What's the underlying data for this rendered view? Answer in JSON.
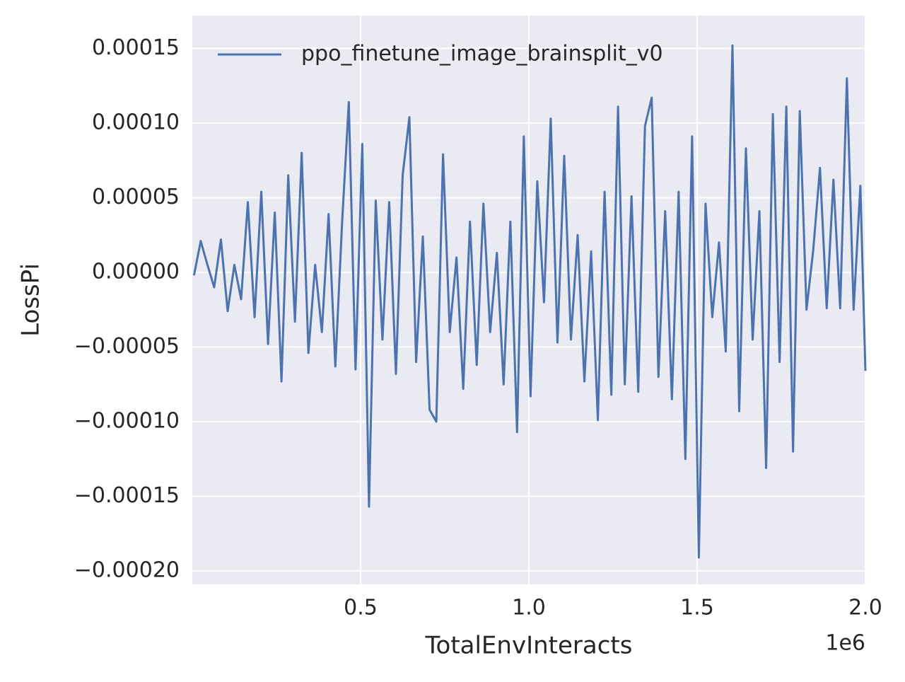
{
  "chart_data": {
    "type": "line",
    "xlabel": "TotalEnvInteracts",
    "ylabel": "LossPi",
    "x_offset_label": "1e6",
    "xlim": [
      0,
      2000000
    ],
    "ylim": [
      -0.000209,
      0.000172
    ],
    "xticks": [
      {
        "value": 500000,
        "label": "0.5"
      },
      {
        "value": 1000000,
        "label": "1.0"
      },
      {
        "value": 1500000,
        "label": "1.5"
      },
      {
        "value": 2000000,
        "label": "2.0"
      }
    ],
    "yticks": [
      {
        "value": -0.0002,
        "label": "−0.00020"
      },
      {
        "value": -0.00015,
        "label": "−0.00015"
      },
      {
        "value": -0.0001,
        "label": "−0.00010"
      },
      {
        "value": -5e-05,
        "label": "−0.00005"
      },
      {
        "value": 0,
        "label": "0.00000"
      },
      {
        "value": 5e-05,
        "label": "0.00005"
      },
      {
        "value": 0.0001,
        "label": "0.00010"
      },
      {
        "value": 0.00015,
        "label": "0.00015"
      }
    ],
    "grid": true,
    "legend": "upper left",
    "x": [
      5000,
      25000,
      45000,
      65000,
      85000,
      105000,
      125000,
      145000,
      165000,
      185000,
      205000,
      225000,
      245000,
      265000,
      285000,
      305000,
      325000,
      345000,
      365000,
      385000,
      405000,
      425000,
      445000,
      465000,
      485000,
      505000,
      525000,
      545000,
      565000,
      585000,
      605000,
      625000,
      645000,
      665000,
      685000,
      705000,
      725000,
      745000,
      765000,
      785000,
      805000,
      825000,
      845000,
      865000,
      885000,
      905000,
      925000,
      945000,
      965000,
      985000,
      1005000,
      1025000,
      1045000,
      1065000,
      1085000,
      1105000,
      1125000,
      1145000,
      1165000,
      1185000,
      1205000,
      1225000,
      1245000,
      1265000,
      1285000,
      1305000,
      1325000,
      1345000,
      1365000,
      1385000,
      1405000,
      1425000,
      1445000,
      1465000,
      1485000,
      1505000,
      1525000,
      1545000,
      1565000,
      1585000,
      1605000,
      1625000,
      1645000,
      1665000,
      1685000,
      1705000,
      1725000,
      1745000,
      1765000,
      1785000,
      1805000,
      1825000,
      1845000,
      1865000,
      1885000,
      1905000,
      1925000,
      1945000,
      1965000,
      1985000,
      2000000
    ],
    "series": [
      {
        "name": "ppo_finetune_image_brainsplit_v0",
        "color": "#4c72b0",
        "values": [
          -2e-06,
          2.1e-05,
          5e-06,
          -1e-05,
          2.2e-05,
          -2.6e-05,
          5e-06,
          -1.8e-05,
          4.7e-05,
          -3e-05,
          5.4e-05,
          -4.8e-05,
          4e-05,
          -7.3e-05,
          6.5e-05,
          -3.3e-05,
          8e-05,
          -5.4e-05,
          5e-06,
          -4e-05,
          3.9e-05,
          -6.3e-05,
          3.3e-05,
          0.000114,
          -6.5e-05,
          8.6e-05,
          -0.000157,
          4.8e-05,
          -4.5e-05,
          4.7e-05,
          -6.8e-05,
          6.5e-05,
          0.000104,
          -6e-05,
          2.4e-05,
          -9.2e-05,
          -0.0001,
          7.9e-05,
          -4e-05,
          1e-05,
          -7.8e-05,
          3.4e-05,
          -6.2e-05,
          4.6e-05,
          -4e-05,
          1.3e-05,
          -7.5e-05,
          3.4e-05,
          -0.000107,
          9.1e-05,
          -8.3e-05,
          6.1e-05,
          -2e-05,
          0.000103,
          -4.7e-05,
          7.8e-05,
          -4.5e-05,
          2.5e-05,
          -7.3e-05,
          1.4e-05,
          -9.9e-05,
          5.4e-05,
          -8.2e-05,
          0.000111,
          -7.5e-05,
          5.1e-05,
          -8e-05,
          9.8e-05,
          0.000117,
          -7e-05,
          4.1e-05,
          -8.5e-05,
          5.4e-05,
          -0.000125,
          9.1e-05,
          -0.000191,
          4.6e-05,
          -3e-05,
          2e-05,
          -5.3e-05,
          0.000152,
          -9.3e-05,
          8.3e-05,
          -4.5e-05,
          4.1e-05,
          -0.000131,
          0.000106,
          -6e-05,
          0.000111,
          -0.00012,
          0.000108,
          -2.5e-05,
          1.5e-05,
          7e-05,
          -2.4e-05,
          6.2e-05,
          -2.4e-05,
          0.00013,
          -2.5e-05,
          5.8e-05,
          -6.6e-05
        ]
      }
    ]
  }
}
